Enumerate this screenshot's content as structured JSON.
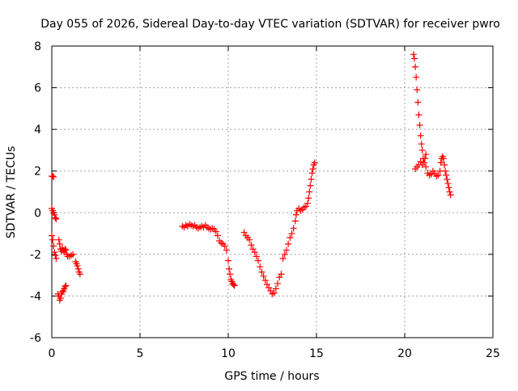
{
  "chart_data": {
    "type": "scatter",
    "title": "Day 055 of 2026, Sidereal Day-to-day VTEC variation (SDTVAR) for receiver pwro",
    "xlabel": "GPS time / hours",
    "ylabel": "SDTVAR / TECUs",
    "xlim": [
      0,
      25
    ],
    "ylim": [
      -6,
      8
    ],
    "xticks": [
      "0",
      "5",
      "10",
      "15",
      "20",
      "25"
    ],
    "yticks": [
      "-6",
      "-4",
      "-2",
      "0",
      "2",
      "4",
      "6",
      "8"
    ],
    "grid": true,
    "marker": "+",
    "marker_color": "#ff0000",
    "series": [
      {
        "name": "SDTVAR",
        "points": [
          [
            0.0,
            1.75
          ],
          [
            0.05,
            1.75
          ],
          [
            0.1,
            1.72
          ],
          [
            0.0,
            0.2
          ],
          [
            0.05,
            0.1
          ],
          [
            0.1,
            0.0
          ],
          [
            0.15,
            -0.1
          ],
          [
            0.2,
            -0.25
          ],
          [
            0.25,
            -0.3
          ],
          [
            0.0,
            -1.1
          ],
          [
            0.05,
            -1.3
          ],
          [
            0.1,
            -1.6
          ],
          [
            0.15,
            -1.9
          ],
          [
            0.2,
            -2.05
          ],
          [
            0.25,
            -2.2
          ],
          [
            0.4,
            -1.3
          ],
          [
            0.45,
            -1.5
          ],
          [
            0.5,
            -1.75
          ],
          [
            0.55,
            -1.85
          ],
          [
            0.6,
            -1.7
          ],
          [
            0.65,
            -1.8
          ],
          [
            0.7,
            -1.9
          ],
          [
            0.75,
            -1.75
          ],
          [
            0.8,
            -1.8
          ],
          [
            0.85,
            -2.0
          ],
          [
            0.9,
            -2.1
          ],
          [
            1.0,
            -2.1
          ],
          [
            1.1,
            -2.05
          ],
          [
            1.2,
            -2.0
          ],
          [
            0.35,
            -3.9
          ],
          [
            0.4,
            -4.0
          ],
          [
            0.45,
            -4.2
          ],
          [
            0.5,
            -4.1
          ],
          [
            0.55,
            -3.9
          ],
          [
            0.6,
            -3.8
          ],
          [
            0.65,
            -3.75
          ],
          [
            0.7,
            -3.65
          ],
          [
            0.75,
            -3.55
          ],
          [
            0.8,
            -3.5
          ],
          [
            1.35,
            -2.35
          ],
          [
            1.4,
            -2.45
          ],
          [
            1.45,
            -2.55
          ],
          [
            1.5,
            -2.7
          ],
          [
            1.55,
            -2.85
          ],
          [
            1.6,
            -2.95
          ],
          [
            7.4,
            -0.65
          ],
          [
            7.5,
            -0.7
          ],
          [
            7.6,
            -0.6
          ],
          [
            7.7,
            -0.65
          ],
          [
            7.8,
            -0.55
          ],
          [
            7.9,
            -0.6
          ],
          [
            8.0,
            -0.65
          ],
          [
            8.1,
            -0.6
          ],
          [
            8.2,
            -0.7
          ],
          [
            8.3,
            -0.75
          ],
          [
            8.4,
            -0.7
          ],
          [
            8.5,
            -0.65
          ],
          [
            8.6,
            -0.7
          ],
          [
            8.7,
            -0.6
          ],
          [
            8.8,
            -0.7
          ],
          [
            8.9,
            -0.75
          ],
          [
            9.0,
            -0.8
          ],
          [
            9.1,
            -0.75
          ],
          [
            9.2,
            -0.8
          ],
          [
            9.3,
            -0.9
          ],
          [
            9.4,
            -1.1
          ],
          [
            9.5,
            -1.35
          ],
          [
            9.6,
            -1.45
          ],
          [
            9.7,
            -1.5
          ],
          [
            9.8,
            -1.6
          ],
          [
            9.9,
            -1.8
          ],
          [
            10.0,
            -2.3
          ],
          [
            10.05,
            -2.7
          ],
          [
            10.1,
            -2.95
          ],
          [
            10.15,
            -3.2
          ],
          [
            10.2,
            -3.3
          ],
          [
            10.25,
            -3.4
          ],
          [
            10.3,
            -3.45
          ],
          [
            10.35,
            -3.5
          ],
          [
            10.9,
            -0.95
          ],
          [
            11.0,
            -1.1
          ],
          [
            11.1,
            -1.2
          ],
          [
            11.2,
            -1.3
          ],
          [
            11.3,
            -1.55
          ],
          [
            11.4,
            -1.75
          ],
          [
            11.5,
            -1.9
          ],
          [
            11.6,
            -2.1
          ],
          [
            11.7,
            -2.3
          ],
          [
            11.8,
            -2.6
          ],
          [
            11.9,
            -2.85
          ],
          [
            12.0,
            -3.05
          ],
          [
            12.1,
            -3.25
          ],
          [
            12.2,
            -3.45
          ],
          [
            12.3,
            -3.6
          ],
          [
            12.4,
            -3.75
          ],
          [
            12.5,
            -3.9
          ],
          [
            12.6,
            -3.85
          ],
          [
            12.7,
            -3.65
          ],
          [
            12.8,
            -3.4
          ],
          [
            12.9,
            -3.1
          ],
          [
            13.0,
            -2.95
          ],
          [
            13.1,
            -2.2
          ],
          [
            13.2,
            -2.0
          ],
          [
            13.3,
            -1.8
          ],
          [
            13.4,
            -1.5
          ],
          [
            13.5,
            -1.2
          ],
          [
            13.6,
            -1.0
          ],
          [
            13.7,
            -0.75
          ],
          [
            13.8,
            -0.4
          ],
          [
            13.85,
            -0.1
          ],
          [
            13.9,
            0.1
          ],
          [
            14.0,
            0.2
          ],
          [
            14.1,
            0.1
          ],
          [
            14.2,
            0.15
          ],
          [
            14.3,
            0.25
          ],
          [
            14.4,
            0.3
          ],
          [
            14.5,
            0.45
          ],
          [
            14.55,
            0.7
          ],
          [
            14.6,
            1.0
          ],
          [
            14.65,
            1.3
          ],
          [
            14.7,
            1.6
          ],
          [
            14.75,
            1.9
          ],
          [
            14.8,
            2.1
          ],
          [
            14.85,
            2.3
          ],
          [
            14.9,
            2.4
          ],
          [
            20.5,
            7.6
          ],
          [
            20.55,
            7.4
          ],
          [
            20.6,
            7.0
          ],
          [
            20.65,
            6.5
          ],
          [
            20.7,
            5.9
          ],
          [
            20.75,
            5.3
          ],
          [
            20.8,
            4.7
          ],
          [
            20.85,
            4.2
          ],
          [
            20.9,
            3.7
          ],
          [
            20.95,
            3.3
          ],
          [
            21.0,
            3.0
          ],
          [
            21.05,
            2.6
          ],
          [
            21.1,
            2.4
          ],
          [
            21.15,
            2.6
          ],
          [
            21.2,
            2.8
          ],
          [
            20.6,
            2.1
          ],
          [
            20.7,
            2.2
          ],
          [
            20.8,
            2.3
          ],
          [
            20.9,
            2.45
          ],
          [
            21.0,
            2.3
          ],
          [
            21.2,
            2.2
          ],
          [
            21.3,
            1.9
          ],
          [
            21.4,
            1.8
          ],
          [
            21.5,
            1.85
          ],
          [
            21.6,
            2.0
          ],
          [
            21.7,
            1.9
          ],
          [
            21.8,
            1.75
          ],
          [
            21.9,
            1.8
          ],
          [
            22.0,
            2.0
          ],
          [
            22.05,
            2.4
          ],
          [
            22.1,
            2.6
          ],
          [
            22.15,
            2.7
          ],
          [
            22.2,
            2.6
          ],
          [
            22.25,
            2.3
          ],
          [
            22.3,
            2.0
          ],
          [
            22.35,
            1.8
          ],
          [
            22.4,
            1.6
          ],
          [
            22.45,
            1.4
          ],
          [
            22.5,
            1.2
          ],
          [
            22.55,
            1.0
          ],
          [
            22.6,
            0.85
          ]
        ]
      }
    ]
  }
}
